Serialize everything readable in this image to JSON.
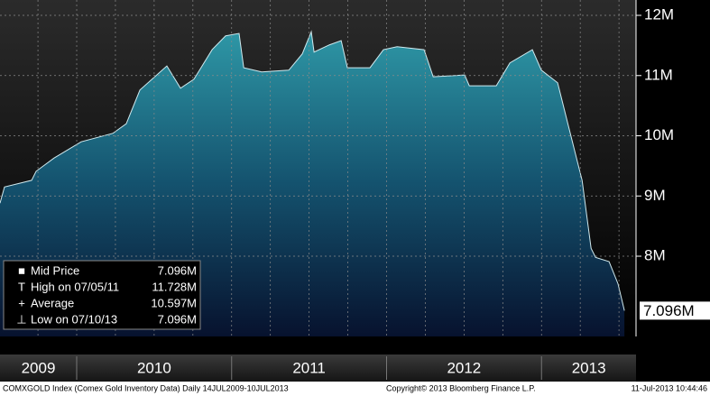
{
  "chart_data": {
    "type": "area",
    "series": [
      {
        "name": "Mid Price",
        "color": "#2a8d9e",
        "x": [
          2009.505,
          2009.534,
          2009.709,
          2009.738,
          2009.854,
          2010.029,
          2010.233,
          2010.32,
          2010.408,
          2010.582,
          2010.67,
          2010.757,
          2010.874,
          2010.961,
          2011.048,
          2011.078,
          2011.194,
          2011.369,
          2011.456,
          2011.514,
          2011.532,
          2011.631,
          2011.707,
          2011.747,
          2011.893,
          2011.98,
          2012.068,
          2012.242,
          2012.301,
          2012.504,
          2012.534,
          2012.708,
          2012.796,
          2012.941,
          2012.999,
          2013.104,
          2013.174,
          2013.262,
          2013.32,
          2013.349,
          2013.436,
          2013.494,
          2013.535
        ],
        "values": [
          8.88,
          9.15,
          9.26,
          9.41,
          9.63,
          9.9,
          10.04,
          10.2,
          10.76,
          11.16,
          10.79,
          10.94,
          11.43,
          11.66,
          11.7,
          11.13,
          11.06,
          11.09,
          11.36,
          11.728,
          11.39,
          11.51,
          11.58,
          11.13,
          11.13,
          11.43,
          11.48,
          11.43,
          10.98,
          11.01,
          10.83,
          10.83,
          11.21,
          11.43,
          11.09,
          10.88,
          10.16,
          9.26,
          8.13,
          7.98,
          7.91,
          7.54,
          7.096
        ],
        "last_value_label": "7.096M"
      }
    ],
    "legend": [
      {
        "label": "Mid Price",
        "value_label": "7.096M"
      },
      {
        "label": "High on 07/05/11",
        "value_label": "11.728M"
      },
      {
        "label": "Average",
        "value_label": "10.597M"
      },
      {
        "label": "Low on 07/10/13",
        "value_label": "7.096M"
      }
    ],
    "xlim": [
      2009.505,
      2013.61
    ],
    "xticks": [
      2009.75,
      2010,
      2010.25,
      2010.5,
      2010.75,
      2011,
      2011.25,
      2011.5,
      2011.75,
      2012,
      2012.25,
      2012.5,
      2012.75,
      2013,
      2013.25,
      2013.5
    ],
    "years": [
      "2009",
      "2010",
      "2011",
      "2012",
      "2013"
    ],
    "ylim": [
      6.667,
      12.255
    ],
    "yticks": [
      {
        "value": 8,
        "label": "8M"
      },
      {
        "value": 9,
        "label": "9M"
      },
      {
        "value": 10,
        "label": "10M"
      },
      {
        "value": 11,
        "label": "11M"
      },
      {
        "value": 12,
        "label": "12M"
      }
    ],
    "grid": true,
    "footer": {
      "left": "COMXGOLD Index (Comex Gold Inventory Data)  Daily 14JUL2009-10JUL2013",
      "center": "Copyright© 2013 Bloomberg Finance L.P.",
      "right": "11-Jul-2013 10:44:46"
    }
  }
}
